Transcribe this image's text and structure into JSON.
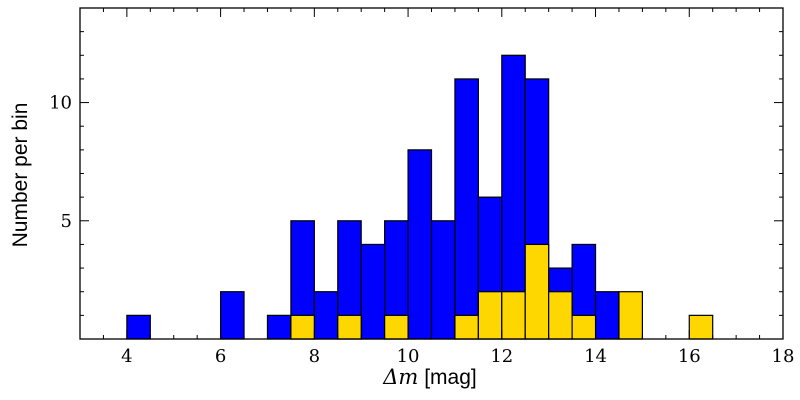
{
  "chart_data": {
    "type": "bar",
    "title": "",
    "xlabel_symbol": "Δm",
    "xlabel_unit": "[mag]",
    "ylabel": "Number per bin",
    "xlim": [
      3,
      18
    ],
    "ylim": [
      0,
      14
    ],
    "xticks": [
      4,
      6,
      8,
      10,
      12,
      14,
      16,
      18
    ],
    "yticks": [
      5,
      10
    ],
    "bin_width": 0.5,
    "legend": "none",
    "grid": false,
    "series": [
      {
        "color": "#0000ff",
        "bins": [
          {
            "x0": 4.0,
            "count": 1
          },
          {
            "x0": 6.0,
            "count": 2
          },
          {
            "x0": 7.0,
            "count": 1
          },
          {
            "x0": 7.5,
            "count": 5
          },
          {
            "x0": 8.0,
            "count": 2
          },
          {
            "x0": 8.5,
            "count": 5
          },
          {
            "x0": 9.0,
            "count": 4
          },
          {
            "x0": 9.5,
            "count": 5
          },
          {
            "x0": 10.0,
            "count": 8
          },
          {
            "x0": 10.5,
            "count": 5
          },
          {
            "x0": 11.0,
            "count": 11
          },
          {
            "x0": 11.5,
            "count": 6
          },
          {
            "x0": 12.0,
            "count": 12
          },
          {
            "x0": 12.5,
            "count": 11
          },
          {
            "x0": 13.0,
            "count": 3
          },
          {
            "x0": 13.5,
            "count": 4
          },
          {
            "x0": 14.0,
            "count": 2
          }
        ]
      },
      {
        "color": "#ffd700",
        "bins": [
          {
            "x0": 7.5,
            "count": 1
          },
          {
            "x0": 8.5,
            "count": 1
          },
          {
            "x0": 9.5,
            "count": 1
          },
          {
            "x0": 11.0,
            "count": 1
          },
          {
            "x0": 11.5,
            "count": 2
          },
          {
            "x0": 12.0,
            "count": 2
          },
          {
            "x0": 12.5,
            "count": 4
          },
          {
            "x0": 13.0,
            "count": 2
          },
          {
            "x0": 13.5,
            "count": 1
          },
          {
            "x0": 14.5,
            "count": 2
          },
          {
            "x0": 16.0,
            "count": 1
          }
        ]
      }
    ]
  }
}
